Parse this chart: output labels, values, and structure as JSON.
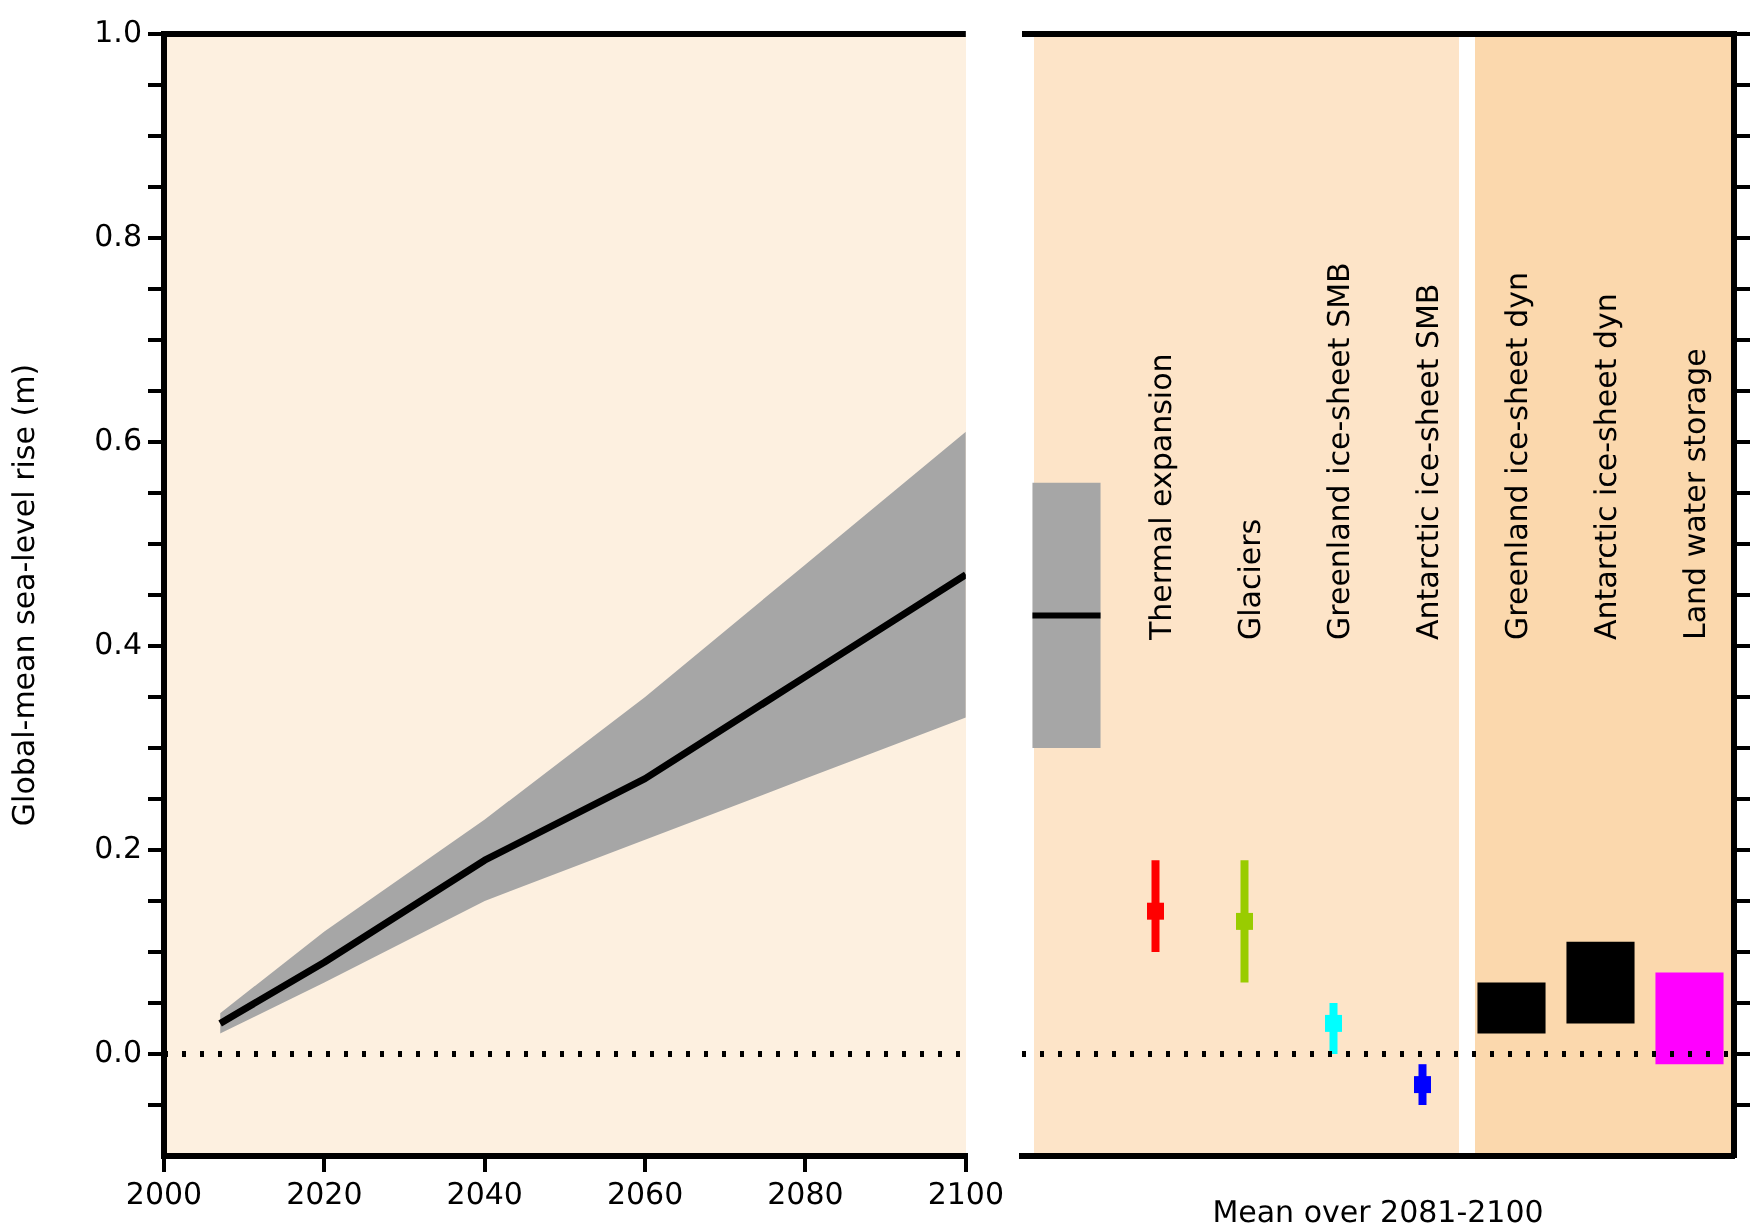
{
  "chart_data": [
    {
      "type": "line",
      "ylabel": "Global-mean sea-level rise (m)",
      "xlim": [
        2000,
        2100
      ],
      "xticks": [
        2000,
        2020,
        2040,
        2060,
        2080,
        2100
      ],
      "ylim": [
        -0.1,
        1.0
      ],
      "yticks": [
        {
          "value": -0.05,
          "label": null
        },
        {
          "value": 0.0,
          "label": "0.0"
        },
        {
          "value": 0.05,
          "label": null
        },
        {
          "value": 0.1,
          "label": null
        },
        {
          "value": 0.15,
          "label": null
        },
        {
          "value": 0.2,
          "label": "0.2"
        },
        {
          "value": 0.25,
          "label": null
        },
        {
          "value": 0.3,
          "label": null
        },
        {
          "value": 0.35,
          "label": null
        },
        {
          "value": 0.4,
          "label": "0.4"
        },
        {
          "value": 0.45,
          "label": null
        },
        {
          "value": 0.5,
          "label": null
        },
        {
          "value": 0.55,
          "label": null
        },
        {
          "value": 0.6,
          "label": "0.6"
        },
        {
          "value": 0.65,
          "label": null
        },
        {
          "value": 0.7,
          "label": null
        },
        {
          "value": 0.75,
          "label": null
        },
        {
          "value": 0.8,
          "label": "0.8"
        },
        {
          "value": 0.85,
          "label": null
        },
        {
          "value": 0.9,
          "label": null
        },
        {
          "value": 0.95,
          "label": null
        },
        {
          "value": 1.0,
          "label": "1.0"
        }
      ],
      "grid": false,
      "ref_lines": [
        {
          "axis": "y",
          "value": 0,
          "line_style": "dotted",
          "color": "#000000"
        }
      ],
      "series": [
        {
          "color": "#000000",
          "x": [
            2007,
            2020,
            2040,
            2060,
            2080,
            2100
          ],
          "values": [
            0.03,
            0.09,
            0.19,
            0.27,
            0.37,
            0.47
          ],
          "lower": [
            0.02,
            0.07,
            0.15,
            0.21,
            0.27,
            0.33
          ],
          "upper": [
            0.04,
            0.12,
            0.23,
            0.35,
            0.48,
            0.61
          ]
        }
      ]
    },
    {
      "type": "bar",
      "xlabel": "Mean over 2081-2100",
      "tick_labels": false,
      "grid": false,
      "categories": [
        null,
        "Thermal expansion",
        "Glaciers",
        "Greenland ice-sheet SMB",
        "Antarctic ice-sheet SMB",
        "Greenland ice-sheet dyn",
        "Antarctic ice-sheet dyn",
        "Land water storage"
      ],
      "ylim": [
        -0.1,
        1.0
      ],
      "yticks": [
        -0.05,
        0,
        0.05,
        0.1,
        0.15,
        0.2,
        0.25,
        0.3,
        0.35,
        0.4,
        0.45,
        0.5,
        0.55,
        0.6,
        0.65,
        0.7,
        0.75,
        0.8,
        0.85,
        0.9,
        0.95,
        1.0
      ],
      "ref_lines": [
        {
          "axis": "y",
          "value": 0,
          "line_style": "dotted",
          "color": "#000000"
        }
      ],
      "series": [
        {
          "type": "box",
          "color": "#a6a6a6",
          "boxes": [
            {
              "low": 0.3,
              "q1": 0.3,
              "median": 0.43,
              "q3": 0.56,
              "high": 0.56
            },
            null,
            null,
            null,
            null,
            null,
            null,
            null
          ]
        },
        {
          "type": "bar",
          "values": [
            null,
            null,
            null,
            null,
            null,
            0.05,
            0.08,
            0.09
          ],
          "base": [
            null,
            null,
            null,
            null,
            null,
            0.02,
            0.03,
            -0.01
          ],
          "colors": [
            null,
            null,
            null,
            null,
            null,
            "#000000",
            "#000000",
            "#ff00ff"
          ]
        },
        {
          "type": "scatter",
          "marker": "square",
          "x": [
            "Thermal expansion",
            "Glaciers",
            "Greenland ice-sheet SMB",
            "Antarctic ice-sheet SMB"
          ],
          "values": [
            0.14,
            0.13,
            0.03,
            -0.03
          ],
          "errors": [
            [
              0.1,
              0.19
            ],
            [
              0.07,
              0.19
            ],
            [
              0.0,
              0.05
            ],
            [
              -0.05,
              -0.01
            ]
          ],
          "colors": [
            "#ff0000",
            "#99cc00",
            "#00ffff",
            "#0000ff"
          ]
        }
      ]
    }
  ]
}
